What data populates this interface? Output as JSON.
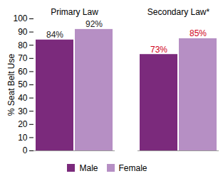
{
  "chart_data": {
    "type": "bar",
    "categories": [
      "Primary Law",
      "Secondary Law*"
    ],
    "series": [
      {
        "name": "Male",
        "color": "#7b2a7c",
        "values": [
          84,
          73
        ],
        "value_labels": [
          "84%",
          "73%"
        ]
      },
      {
        "name": "Female",
        "color": "#b68fc4",
        "values": [
          92,
          85
        ],
        "value_labels": [
          "92%",
          "85%"
        ]
      }
    ],
    "y_label": "% Seat Belt Use",
    "ylim": [
      0,
      100
    ],
    "yticks": [
      0,
      10,
      20,
      30,
      40,
      50,
      60,
      70,
      80,
      90,
      100
    ],
    "grid": false,
    "data_labels": true,
    "legend": "bottom"
  }
}
